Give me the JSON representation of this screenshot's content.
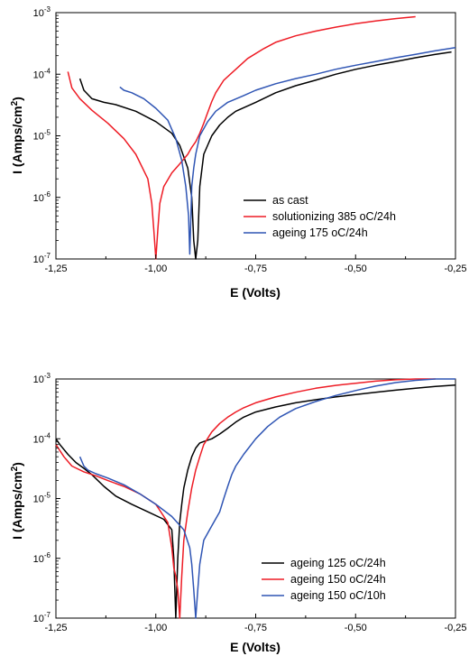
{
  "chart_data": [
    {
      "type": "line",
      "xlabel": "E (Volts)",
      "ylabel_main": "I (Amps/cm",
      "ylabel_sup": "2",
      "ylabel_end": ")",
      "xlim": [
        -1.25,
        -0.25
      ],
      "ylim": [
        1e-07,
        0.001
      ],
      "yscale": "log",
      "x_ticks": [
        -1.25,
        -1.0,
        -0.75,
        -0.5,
        -0.25
      ],
      "x_tick_labels": [
        "-1,25",
        "-1,00",
        "-0,75",
        "-0,50",
        "-0,25"
      ],
      "y_ticks": [
        {
          "base": "10",
          "exp": "-7"
        },
        {
          "base": "10",
          "exp": "-6"
        },
        {
          "base": "10",
          "exp": "-5"
        },
        {
          "base": "10",
          "exp": "-4"
        },
        {
          "base": "10",
          "exp": "-3"
        }
      ],
      "legend_position": "lower-right",
      "series": [
        {
          "name": "as cast",
          "color": "#000000",
          "x": [
            -1.19,
            -1.18,
            -1.16,
            -1.13,
            -1.1,
            -1.05,
            -1.0,
            -0.96,
            -0.94,
            -0.92,
            -0.91,
            -0.905,
            -0.9,
            -0.895,
            -0.89,
            -0.88,
            -0.86,
            -0.84,
            -0.82,
            -0.8,
            -0.75,
            -0.7,
            -0.65,
            -0.6,
            -0.55,
            -0.5,
            -0.45,
            -0.4,
            -0.35,
            -0.3,
            -0.26
          ],
          "y": [
            8.5e-05,
            5.5e-05,
            4e-05,
            3.5e-05,
            3.2e-05,
            2.5e-05,
            1.7e-05,
            1.1e-05,
            7e-06,
            3e-06,
            1e-06,
            2e-07,
            1e-07,
            2e-07,
            1.5e-06,
            5e-06,
            1e-05,
            1.5e-05,
            2e-05,
            2.5e-05,
            3.5e-05,
            5e-05,
            6.5e-05,
            8e-05,
            0.0001,
            0.00012,
            0.00014,
            0.00016,
            0.000185,
            0.00021,
            0.00023
          ]
        },
        {
          "name": "solutionizing 385 oC/24h",
          "color": "#ee1c25",
          "x": [
            -1.22,
            -1.21,
            -1.19,
            -1.16,
            -1.12,
            -1.08,
            -1.05,
            -1.02,
            -1.01,
            -1.005,
            -1.0,
            -0.995,
            -0.99,
            -0.98,
            -0.96,
            -0.94,
            -0.92,
            -0.91,
            -0.9,
            -0.89,
            -0.88,
            -0.87,
            -0.86,
            -0.85,
            -0.83,
            -0.8,
            -0.77,
            -0.73,
            -0.7,
            -0.65,
            -0.6,
            -0.55,
            -0.5,
            -0.45,
            -0.4,
            -0.35
          ],
          "y": [
            0.00011,
            6e-05,
            4e-05,
            2.6e-05,
            1.6e-05,
            9e-06,
            5e-06,
            2e-06,
            8e-07,
            3e-07,
            1e-07,
            3e-07,
            8e-07,
            1.5e-06,
            2.5e-06,
            3.5e-06,
            5e-06,
            6.5e-06,
            8e-06,
            1.1e-05,
            1.6e-05,
            2.4e-05,
            3.6e-05,
            5e-05,
            8e-05,
            0.00012,
            0.00018,
            0.00026,
            0.00033,
            0.00042,
            0.0005,
            0.00058,
            0.00066,
            0.00073,
            0.0008,
            0.00086
          ]
        },
        {
          "name": "ageing 175 oC/24h",
          "color": "#2f55b4",
          "x": [
            -1.09,
            -1.08,
            -1.06,
            -1.03,
            -1.0,
            -0.97,
            -0.95,
            -0.935,
            -0.925,
            -0.918,
            -0.915,
            -0.912,
            -0.91,
            -0.905,
            -0.9,
            -0.89,
            -0.87,
            -0.85,
            -0.82,
            -0.78,
            -0.75,
            -0.7,
            -0.65,
            -0.6,
            -0.55,
            -0.5,
            -0.45,
            -0.4,
            -0.35,
            -0.3,
            -0.25
          ],
          "y": [
            6.2e-05,
            5.5e-05,
            5e-05,
            4e-05,
            2.8e-05,
            1.8e-05,
            9e-06,
            4e-06,
            1.5e-06,
            5e-07,
            1.2e-07,
            5e-07,
            1.5e-06,
            3e-06,
            5e-06,
            1e-05,
            1.7e-05,
            2.5e-05,
            3.5e-05,
            4.5e-05,
            5.5e-05,
            7e-05,
            8.5e-05,
            0.0001,
            0.00012,
            0.00014,
            0.00016,
            0.000185,
            0.00021,
            0.00024,
            0.00027
          ]
        }
      ]
    },
    {
      "type": "line",
      "xlabel": "E (Volts)",
      "ylabel_main": "I (Amps/cm",
      "ylabel_sup": "2",
      "ylabel_end": ")",
      "xlim": [
        -1.25,
        -0.25
      ],
      "ylim": [
        1e-07,
        0.001
      ],
      "yscale": "log",
      "x_ticks": [
        -1.25,
        -1.0,
        -0.75,
        -0.5,
        -0.25
      ],
      "x_tick_labels": [
        "-1,25",
        "-1,00",
        "-0,75",
        "-0,50",
        "-0,25"
      ],
      "y_ticks": [
        {
          "base": "10",
          "exp": "-7"
        },
        {
          "base": "10",
          "exp": "-6"
        },
        {
          "base": "10",
          "exp": "-5"
        },
        {
          "base": "10",
          "exp": "-4"
        },
        {
          "base": "10",
          "exp": "-3"
        }
      ],
      "legend_position": "lower-right",
      "series": [
        {
          "name": "ageing 125 oC/24h",
          "color": "#000000",
          "x": [
            -1.25,
            -1.24,
            -1.22,
            -1.2,
            -1.18,
            -1.16,
            -1.13,
            -1.1,
            -1.06,
            -1.02,
            -0.98,
            -0.96,
            -0.955,
            -0.95,
            -0.945,
            -0.94,
            -0.935,
            -0.93,
            -0.92,
            -0.91,
            -0.9,
            -0.89,
            -0.88,
            -0.86,
            -0.84,
            -0.82,
            -0.8,
            -0.78,
            -0.75,
            -0.7,
            -0.65,
            -0.6,
            -0.55,
            -0.5,
            -0.45,
            -0.4,
            -0.35,
            -0.3,
            -0.25
          ],
          "y": [
            0.0001,
            8e-05,
            5.5e-05,
            4e-05,
            3.2e-05,
            2.5e-05,
            1.6e-05,
            1.1e-05,
            8e-06,
            6e-06,
            4.5e-06,
            3e-06,
            1e-06,
            1e-07,
            1e-06,
            4e-06,
            8e-06,
            1.5e-05,
            3e-05,
            5e-05,
            7e-05,
            8.5e-05,
            9e-05,
            0.0001,
            0.00012,
            0.00015,
            0.00019,
            0.00023,
            0.00028,
            0.00034,
            0.0004,
            0.00045,
            0.0005,
            0.00055,
            0.0006,
            0.00065,
            0.0007,
            0.00075,
            0.00079
          ]
        },
        {
          "name": "ageing 150 oC/24h",
          "color": "#ee1c25",
          "x": [
            -1.25,
            -1.23,
            -1.21,
            -1.18,
            -1.15,
            -1.12,
            -1.08,
            -1.04,
            -1.0,
            -0.97,
            -0.96,
            -0.955,
            -0.95,
            -0.945,
            -0.94,
            -0.935,
            -0.93,
            -0.92,
            -0.91,
            -0.9,
            -0.89,
            -0.88,
            -0.86,
            -0.84,
            -0.82,
            -0.8,
            -0.78,
            -0.75,
            -0.7,
            -0.65,
            -0.6,
            -0.55,
            -0.5,
            -0.45,
            -0.4,
            -0.35,
            -0.3
          ],
          "y": [
            8e-05,
            5e-05,
            3.5e-05,
            2.8e-05,
            2.4e-05,
            2e-05,
            1.6e-05,
            1.2e-05,
            8e-06,
            4e-06,
            1.5e-06,
            7e-07,
            5e-07,
            3e-07,
            1e-07,
            5e-07,
            2e-06,
            6e-06,
            1.5e-05,
            3e-05,
            5e-05,
            8e-05,
            0.00013,
            0.00018,
            0.00023,
            0.00028,
            0.00033,
            0.0004,
            0.0005,
            0.0006,
            0.0007,
            0.00078,
            0.00085,
            0.00092,
            0.00097,
            0.001,
            0.001
          ]
        },
        {
          "name": "ageing 150 oC/10h",
          "color": "#2f55b4",
          "x": [
            -1.19,
            -1.18,
            -1.17,
            -1.15,
            -1.12,
            -1.08,
            -1.04,
            -1.0,
            -0.96,
            -0.93,
            -0.915,
            -0.91,
            -0.905,
            -0.9,
            -0.895,
            -0.89,
            -0.88,
            -0.86,
            -0.84,
            -0.83,
            -0.82,
            -0.81,
            -0.8,
            -0.78,
            -0.75,
            -0.72,
            -0.69,
            -0.65,
            -0.6,
            -0.55,
            -0.5,
            -0.45,
            -0.4,
            -0.35,
            -0.3,
            -0.25
          ],
          "y": [
            5e-05,
            3.5e-05,
            3e-05,
            2.6e-05,
            2.2e-05,
            1.7e-05,
            1.2e-05,
            8e-06,
            5e-06,
            3e-06,
            1.5e-06,
            8e-07,
            3e-07,
            1e-07,
            3e-07,
            8e-07,
            2e-06,
            3.5e-06,
            6e-06,
            1e-05,
            1.6e-05,
            2.5e-05,
            3.5e-05,
            5.5e-05,
            0.0001,
            0.00016,
            0.00023,
            0.00032,
            0.00042,
            0.00053,
            0.00064,
            0.00076,
            0.00087,
            0.00095,
            0.001,
            0.001
          ]
        }
      ]
    }
  ]
}
